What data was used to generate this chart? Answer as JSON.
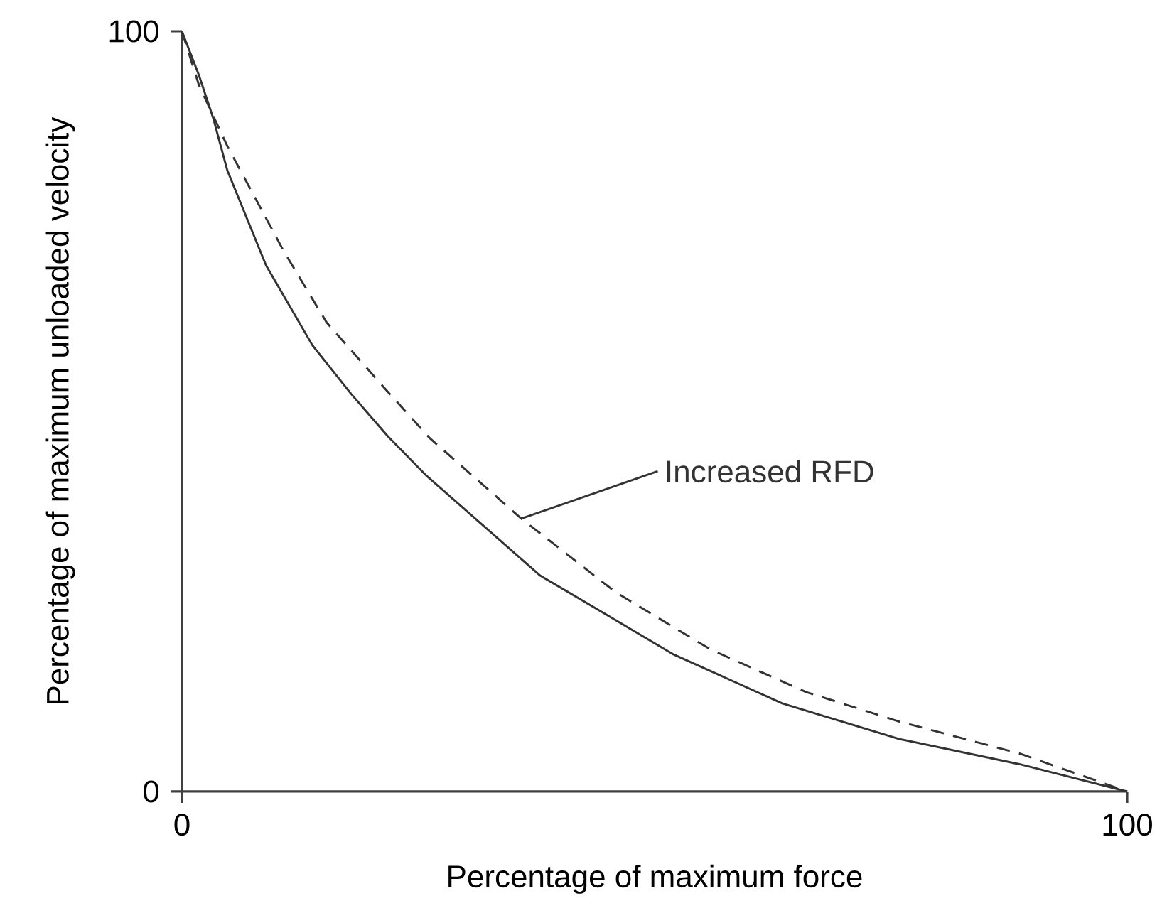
{
  "chart_data": {
    "type": "line",
    "xlabel": "Percentage of maximum force",
    "ylabel": "Percentage of maximum unloaded velocity",
    "xlim": [
      0,
      100
    ],
    "ylim": [
      0,
      100
    ],
    "xticks": [
      0,
      100
    ],
    "yticks": [
      0,
      100
    ],
    "marker": "none",
    "series": [
      {
        "color": "#333333",
        "line_style": "solid",
        "x": [
          0,
          1.8,
          3.3,
          4.8,
          8.9,
          13.8,
          17.9,
          21.8,
          25.9,
          37.9,
          43.5,
          51.9,
          63.5,
          75.9,
          88.6,
          100
        ],
        "values": [
          100,
          94.2,
          88.6,
          81.7,
          69.2,
          58.7,
          52.3,
          46.7,
          41.5,
          28.4,
          24.3,
          18.1,
          11.6,
          6.9,
          3.6,
          0
        ]
      },
      {
        "color": "#333333",
        "line_style": "dashed",
        "x": [
          0,
          1.8,
          4.8,
          10.8,
          15.3,
          21.4,
          26.2,
          35.9,
          45.9,
          55.9,
          66.0,
          75.9,
          88.6,
          100
        ],
        "values": [
          100,
          92.9,
          84.9,
          71.0,
          61.7,
          53.1,
          46.5,
          35.9,
          26.2,
          18.7,
          13.1,
          9.2,
          5.0,
          0
        ]
      }
    ],
    "annotations": [
      {
        "text": "Increased RFD",
        "x": 35.9,
        "y": 35.9
      }
    ]
  }
}
